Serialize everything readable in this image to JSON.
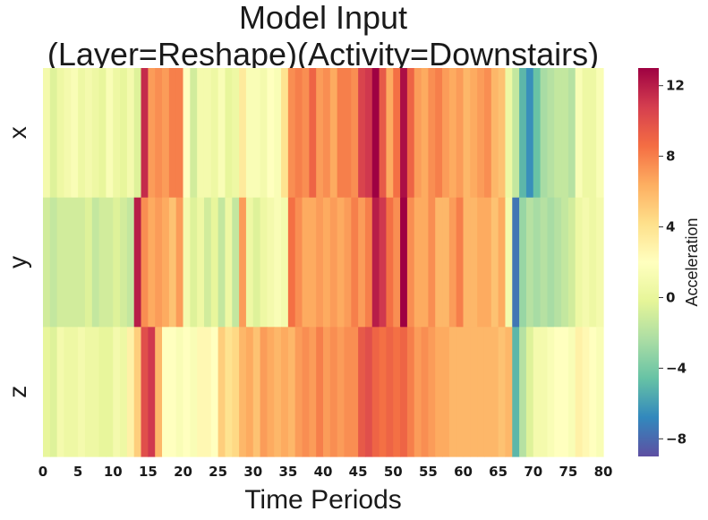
{
  "chart_data": {
    "type": "heatmap",
    "title_line1": "Model Input",
    "title_line2": "(Layer=Reshape)(Activity=Downstairs)",
    "xlabel": "Time Periods",
    "ylabel": "",
    "rows": [
      "x",
      "y",
      "z"
    ],
    "x_ticks": [
      0,
      5,
      10,
      15,
      20,
      25,
      30,
      35,
      40,
      45,
      50,
      55,
      60,
      65,
      70,
      75,
      80
    ],
    "colorbar": {
      "label": "Acceleration",
      "ticks": [
        -8,
        -4,
        0,
        4,
        8,
        12
      ],
      "tick_labels": [
        "−8",
        "−4",
        "0",
        "4",
        "8",
        "12"
      ],
      "vmin": -9,
      "vmax": 13,
      "colormap": "Spectral_r"
    },
    "values": [
      [
        1.0,
        -0.5,
        0.5,
        1.0,
        1.5,
        0.5,
        1.0,
        0.5,
        0.0,
        1.5,
        0.5,
        0.0,
        1.0,
        -0.5,
        11.5,
        7.0,
        7.5,
        7.0,
        8.0,
        8.0,
        2.0,
        -1.0,
        1.0,
        1.0,
        0.5,
        1.5,
        0.0,
        0.5,
        3.5,
        1.5,
        1.5,
        1.0,
        2.0,
        1.5,
        4.0,
        7.5,
        8.0,
        7.5,
        9.0,
        7.0,
        7.5,
        6.5,
        8.0,
        8.0,
        7.5,
        10.5,
        11.0,
        13.0,
        9.5,
        6.5,
        8.5,
        12.5,
        9.0,
        7.0,
        6.5,
        7.5,
        8.0,
        7.0,
        6.5,
        7.0,
        6.0,
        6.5,
        7.0,
        7.5,
        6.0,
        5.5,
        0.5,
        -1.5,
        -5.0,
        -6.5,
        -4.5,
        -2.5,
        -2.0,
        -1.5,
        -1.5,
        -2.0,
        1.5,
        0.5,
        0.5,
        1.5
      ],
      [
        -1.0,
        -1.5,
        -1.0,
        -1.0,
        -1.0,
        -1.0,
        -0.5,
        -1.5,
        -1.0,
        -1.0,
        -0.5,
        -1.0,
        -1.5,
        12.0,
        7.5,
        6.5,
        7.0,
        6.5,
        5.5,
        7.0,
        1.0,
        -0.5,
        0.5,
        -1.0,
        0.0,
        -1.5,
        0.5,
        -1.5,
        7.0,
        0.5,
        -0.5,
        0.5,
        1.0,
        1.5,
        1.0,
        8.5,
        7.5,
        6.5,
        6.5,
        7.0,
        6.5,
        7.0,
        6.5,
        7.0,
        8.0,
        7.0,
        8.0,
        12.0,
        11.0,
        8.5,
        7.5,
        13.0,
        7.5,
        6.5,
        6.5,
        7.5,
        6.0,
        6.0,
        7.0,
        8.0,
        6.0,
        6.0,
        6.5,
        6.5,
        5.5,
        6.5,
        1.0,
        -7.5,
        -3.0,
        -2.0,
        -2.5,
        -2.0,
        -2.5,
        -2.0,
        -1.5,
        -1.0,
        0.5,
        1.0,
        0.5,
        1.0
      ],
      [
        0.0,
        -0.5,
        1.0,
        0.5,
        0.5,
        1.0,
        0.5,
        0.5,
        0.0,
        0.0,
        1.0,
        0.5,
        3.0,
        5.0,
        10.0,
        11.0,
        6.0,
        2.0,
        2.0,
        1.5,
        2.0,
        1.5,
        2.5,
        2.5,
        2.0,
        5.0,
        4.0,
        4.5,
        6.0,
        6.5,
        5.5,
        7.0,
        6.5,
        6.0,
        6.5,
        6.0,
        7.0,
        7.5,
        7.0,
        8.0,
        7.0,
        7.5,
        7.0,
        7.5,
        7.5,
        9.5,
        10.0,
        9.0,
        8.5,
        9.0,
        8.5,
        9.0,
        8.0,
        7.0,
        7.5,
        7.0,
        6.5,
        6.5,
        6.0,
        6.0,
        6.0,
        6.0,
        6.0,
        6.0,
        6.0,
        5.5,
        6.0,
        -5.0,
        -2.0,
        -0.5,
        1.0,
        1.0,
        1.5,
        2.0,
        2.0,
        1.5,
        3.0,
        2.5,
        2.0,
        1.5
      ]
    ]
  }
}
